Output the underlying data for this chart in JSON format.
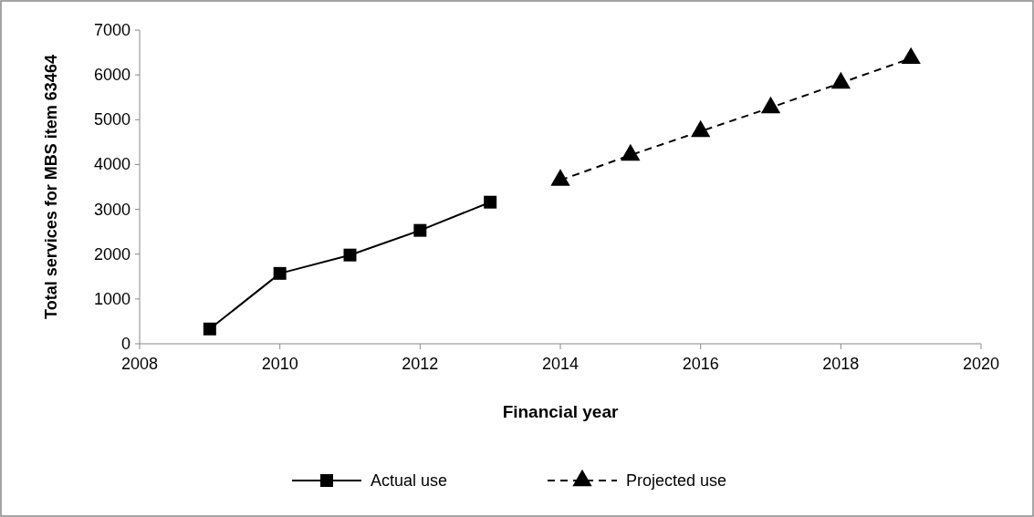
{
  "chart_data": {
    "type": "line",
    "xlabel": "Financial year",
    "ylabel": "Total services for MBS item 63464",
    "xlim": [
      2008,
      2020
    ],
    "xticks": [
      2008,
      2010,
      2012,
      2014,
      2016,
      2018,
      2020
    ],
    "ylim": [
      0,
      7000
    ],
    "yticks": [
      0,
      1000,
      2000,
      3000,
      4000,
      5000,
      6000,
      7000
    ],
    "grid": false,
    "legend": "bottom",
    "series": [
      {
        "name": "Actual use",
        "color": "#000000",
        "marker": "square",
        "line_style": "solid",
        "x": [
          2009,
          2010,
          2011,
          2012,
          2013
        ],
        "values": [
          330,
          1570,
          1980,
          2530,
          3160
        ]
      },
      {
        "name": "Projected use",
        "color": "#000000",
        "marker": "triangle",
        "line_style": "dashed",
        "x": [
          2014,
          2015,
          2016,
          2017,
          2018,
          2019
        ],
        "values": [
          3650,
          4210,
          4740,
          5270,
          5820,
          6370
        ]
      }
    ]
  }
}
